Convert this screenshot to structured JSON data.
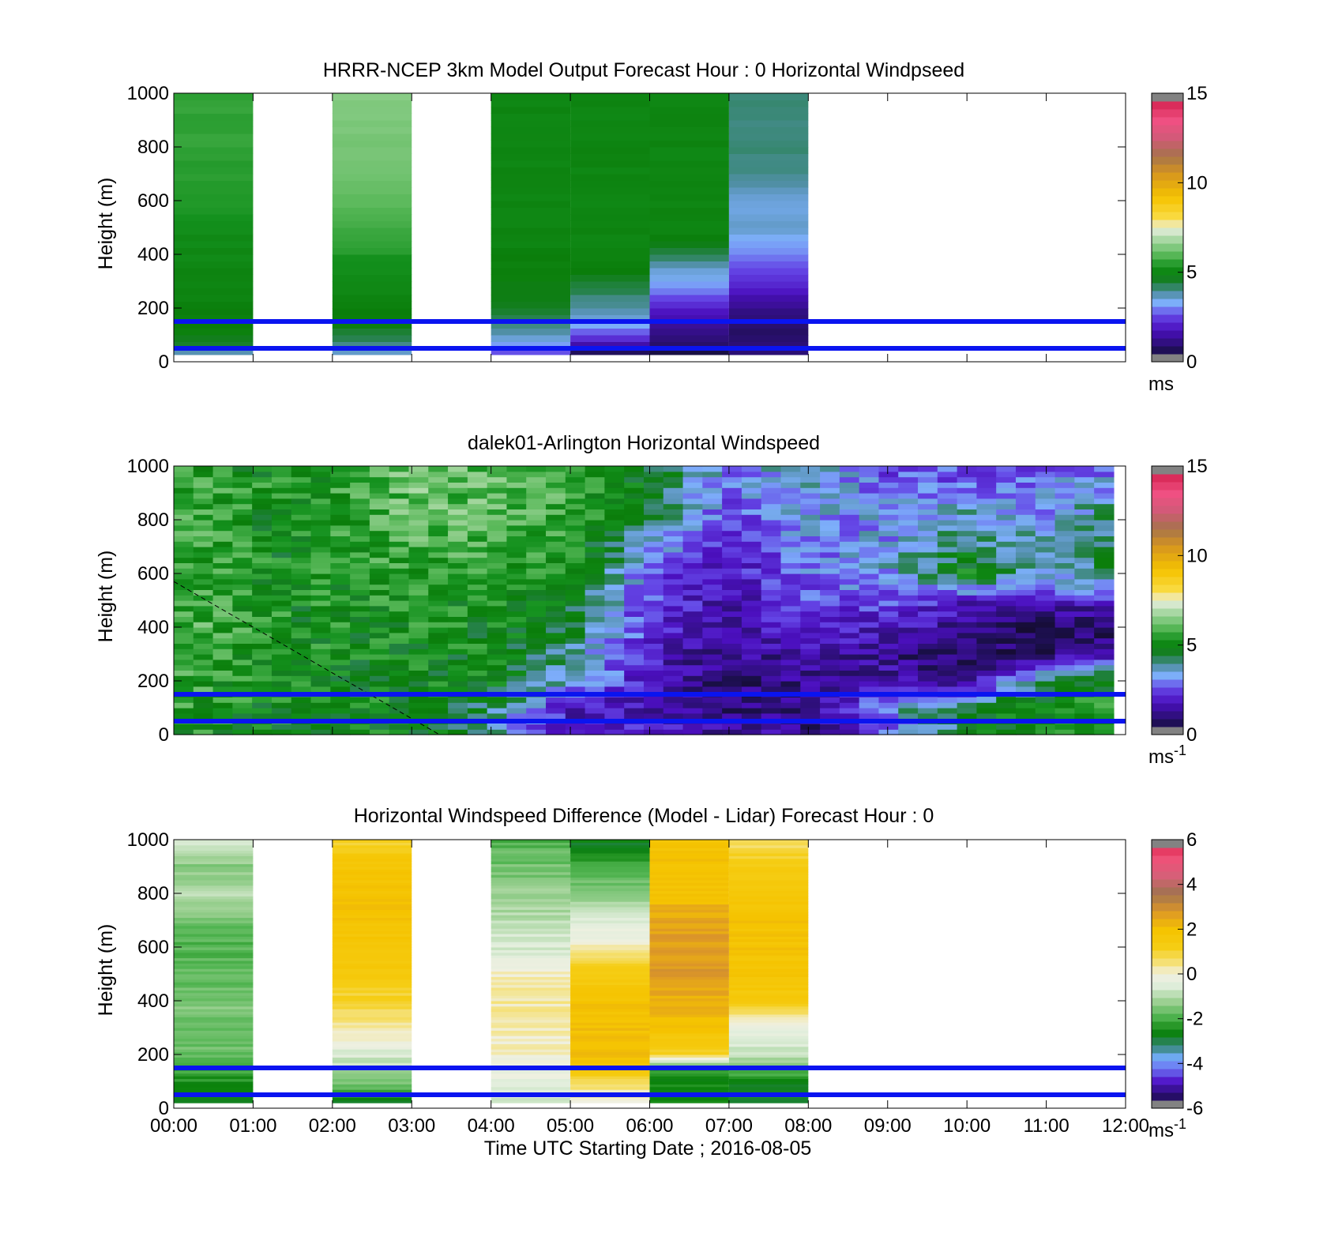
{
  "chart_data": [
    {
      "type": "heatmap",
      "title": "HRRR-NCEP 3km Model Output   Forecast Hour : 0 Horizontal Windpseed",
      "ylabel": "Height (m)",
      "xlabel": "",
      "ylim": [
        0,
        1000
      ],
      "yticks": [
        0,
        200,
        400,
        600,
        800,
        1000
      ],
      "xlim": [
        0,
        12
      ],
      "x_tick_labels": [
        "00:00",
        "01:00",
        "02:00",
        "03:00",
        "04:00",
        "05:00",
        "06:00",
        "07:00",
        "08:00",
        "09:00",
        "10:00",
        "11:00",
        "12:00"
      ],
      "show_x_tick_labels": false,
      "colorbar": {
        "ticks": [
          0,
          5,
          10,
          15
        ],
        "label": "ms",
        "label_sup": "",
        "range": [
          0,
          15
        ]
      },
      "reference_heights": [
        150,
        50
      ],
      "reference_color": "#0a14f0",
      "profile_heights": [
        30,
        60,
        100,
        150,
        200,
        250,
        300,
        350,
        400,
        450,
        500,
        600,
        700,
        800,
        900,
        1000
      ],
      "columns": [
        {
          "t0": 0,
          "t1": 1,
          "values": [
            3.6,
            4.5,
            4.8,
            4.9,
            4.9,
            5.0,
            5.0,
            5.0,
            5.1,
            5.1,
            5.2,
            5.4,
            5.5,
            5.6,
            5.6,
            5.6
          ]
        },
        {
          "t0": 2,
          "t1": 3,
          "values": [
            3.5,
            4.0,
            4.5,
            4.8,
            4.9,
            5.0,
            5.1,
            5.2,
            5.4,
            5.6,
            5.8,
            6.0,
            6.2,
            6.3,
            6.4,
            6.5
          ]
        },
        {
          "t0": 4,
          "t1": 5,
          "values": [
            2.5,
            3.2,
            3.8,
            4.2,
            4.6,
            4.7,
            4.8,
            4.9,
            4.9,
            5.0,
            5.0,
            5.0,
            5.0,
            5.0,
            5.0,
            5.0
          ]
        },
        {
          "t0": 5,
          "t1": 6,
          "values": [
            0.5,
            1.5,
            2.5,
            3.5,
            3.8,
            4.2,
            4.6,
            4.9,
            5.0,
            5.0,
            5.0,
            5.0,
            5.0,
            5.0,
            5.0,
            5.0
          ]
        },
        {
          "t0": 6,
          "t1": 7,
          "values": [
            0.4,
            0.8,
            1.2,
            1.5,
            2.0,
            2.8,
            3.3,
            3.6,
            4.3,
            4.8,
            5.0,
            5.0,
            5.0,
            5.0,
            5.0,
            5.0
          ]
        },
        {
          "t0": 7,
          "t1": 8,
          "values": [
            1.0,
            1.0,
            0.8,
            0.9,
            1.2,
            1.8,
            2.2,
            2.6,
            3.0,
            3.3,
            3.6,
            3.5,
            4.0,
            4.1,
            4.1,
            4.1
          ]
        }
      ]
    },
    {
      "type": "heatmap",
      "title": "dalek01-Arlington  Horizontal Windspeed",
      "ylabel": "Height (m)",
      "xlabel": "",
      "ylim": [
        0,
        1000
      ],
      "yticks": [
        0,
        200,
        400,
        600,
        800,
        1000
      ],
      "xlim": [
        0,
        12
      ],
      "x_tick_labels": [
        "00:00",
        "01:00",
        "02:00",
        "03:00",
        "04:00",
        "05:00",
        "06:00",
        "07:00",
        "08:00",
        "09:00",
        "10:00",
        "11:00",
        "12:00"
      ],
      "show_x_tick_labels": false,
      "colorbar": {
        "ticks": [
          0,
          5,
          10,
          15
        ],
        "label": "ms",
        "label_sup": "-1",
        "range": [
          0,
          15
        ]
      },
      "reference_heights": [
        150,
        50
      ],
      "reference_color": "#0a14f0",
      "dashed_line": {
        "t": [
          0,
          3.35
        ],
        "h": [
          570,
          0
        ]
      },
      "data_extent_hours": 11.85,
      "anchor_profiles": [
        {
          "t": 0.0,
          "h": [
            0,
            200,
            400,
            600,
            800,
            1000
          ],
          "v": [
            5.4,
            5.6,
            5.9,
            5.6,
            5.9,
            5.6
          ]
        },
        {
          "t": 1.5,
          "h": [
            0,
            200,
            400,
            600,
            800,
            1000
          ],
          "v": [
            5.0,
            5.1,
            5.2,
            5.1,
            5.0,
            5.1
          ]
        },
        {
          "t": 3.0,
          "h": [
            0,
            200,
            400,
            600,
            800,
            1000
          ],
          "v": [
            4.9,
            5.0,
            5.2,
            5.6,
            6.0,
            6.2
          ]
        },
        {
          "t": 4.0,
          "h": [
            0,
            100,
            200,
            400,
            600,
            800,
            1000
          ],
          "v": [
            3.8,
            4.3,
            4.9,
            5.0,
            5.5,
            6.0,
            6.0
          ]
        },
        {
          "t": 5.0,
          "h": [
            0,
            100,
            200,
            400,
            600,
            800,
            1000
          ],
          "v": [
            1.6,
            2.0,
            3.5,
            4.5,
            5.0,
            5.6,
            5.8
          ]
        },
        {
          "t": 6.0,
          "h": [
            0,
            100,
            200,
            400,
            600,
            800,
            1000
          ],
          "v": [
            2.2,
            1.6,
            1.8,
            2.2,
            2.8,
            4.2,
            4.8
          ]
        },
        {
          "t": 7.0,
          "h": [
            0,
            100,
            200,
            400,
            600,
            800,
            1000
          ],
          "v": [
            1.5,
            1.1,
            0.9,
            1.4,
            1.8,
            2.6,
            3.2
          ]
        },
        {
          "t": 8.0,
          "h": [
            0,
            100,
            200,
            400,
            600,
            800,
            1000
          ],
          "v": [
            1.2,
            1.0,
            1.2,
            2.2,
            2.9,
            3.2,
            3.7
          ]
        },
        {
          "t": 9.0,
          "h": [
            0,
            100,
            200,
            300,
            400,
            600,
            800,
            1000
          ],
          "v": [
            2.4,
            3.5,
            1.6,
            1.2,
            1.8,
            3.4,
            3.2,
            2.6
          ]
        },
        {
          "t": 10.0,
          "h": [
            0,
            100,
            200,
            300,
            400,
            500,
            600,
            800,
            1000
          ],
          "v": [
            4.6,
            4.6,
            1.2,
            0.8,
            1.3,
            2.0,
            5.0,
            3.8,
            2.4
          ]
        },
        {
          "t": 11.0,
          "h": [
            0,
            100,
            200,
            300,
            400,
            500,
            600,
            800,
            1000
          ],
          "v": [
            5.3,
            5.2,
            4.6,
            1.0,
            0.6,
            1.8,
            3.6,
            3.4,
            2.8
          ]
        },
        {
          "t": 11.85,
          "h": [
            0,
            100,
            200,
            300,
            400,
            500,
            600,
            800,
            1000
          ],
          "v": [
            5.4,
            5.4,
            4.9,
            1.6,
            0.6,
            2.0,
            4.6,
            4.3,
            2.8
          ]
        }
      ]
    },
    {
      "type": "heatmap",
      "title": "Horizontal Windspeed Difference (Model - Lidar) Forecast Hour : 0",
      "ylabel": "Height (m)",
      "xlabel": "Time UTC  Starting Date ; 2016-08-05",
      "ylim": [
        0,
        1000
      ],
      "yticks": [
        0,
        200,
        400,
        600,
        800,
        1000
      ],
      "xlim": [
        0,
        12
      ],
      "x_tick_labels": [
        "00:00",
        "01:00",
        "02:00",
        "03:00",
        "04:00",
        "05:00",
        "06:00",
        "07:00",
        "08:00",
        "09:00",
        "10:00",
        "11:00",
        "12:00"
      ],
      "show_x_tick_labels": true,
      "colorbar": {
        "ticks": [
          -6,
          -4,
          -2,
          0,
          2,
          4,
          6
        ],
        "label": "ms",
        "label_sup": "-1",
        "range": [
          -6,
          6
        ]
      },
      "reference_heights": [
        150,
        50
      ],
      "reference_color": "#0a14f0",
      "columns": [
        {
          "t0": 0,
          "t1": 1,
          "h": [
            30,
            100,
            200,
            300,
            400,
            500,
            600,
            700,
            800,
            900,
            1000
          ],
          "v": [
            -2.6,
            -2.4,
            -1.7,
            -1.6,
            -1.5,
            -1.8,
            -1.9,
            -1.6,
            -1.0,
            -1.4,
            -0.6
          ]
        },
        {
          "t0": 2,
          "t1": 3,
          "h": [
            30,
            100,
            200,
            300,
            400,
            500,
            600,
            700,
            800,
            900,
            1000
          ],
          "v": [
            -2.6,
            -1.4,
            -0.6,
            0.4,
            0.9,
            1.5,
            1.7,
            1.9,
            1.9,
            1.8,
            1.0
          ]
        },
        {
          "t0": 4,
          "t1": 5,
          "h": [
            30,
            100,
            200,
            300,
            400,
            500,
            600,
            700,
            800,
            900,
            1000
          ],
          "v": [
            -0.6,
            -0.4,
            0.1,
            0.2,
            0.3,
            0.1,
            -0.6,
            -0.9,
            -1.3,
            -1.6,
            -1.9
          ]
        },
        {
          "t0": 5,
          "t1": 6,
          "h": [
            30,
            100,
            150,
            200,
            300,
            400,
            500,
            600,
            700,
            800,
            900,
            1000
          ],
          "v": [
            0.2,
            0.5,
            1.8,
            2.0,
            2.0,
            1.9,
            1.3,
            0.2,
            -0.6,
            -1.3,
            -2.2,
            -2.7
          ]
        },
        {
          "t0": 6,
          "t1": 7,
          "h": [
            30,
            100,
            150,
            200,
            300,
            400,
            500,
            600,
            700,
            800,
            900,
            1000
          ],
          "v": [
            -2.6,
            -2.4,
            -2.4,
            1.0,
            2.0,
            2.3,
            2.8,
            2.7,
            2.5,
            2.0,
            1.9,
            1.9
          ]
        },
        {
          "t0": 7,
          "t1": 8,
          "h": [
            30,
            100,
            200,
            300,
            400,
            500,
            600,
            700,
            800,
            900,
            1000
          ],
          "v": [
            -2.6,
            -2.6,
            -0.8,
            -0.4,
            1.5,
            1.8,
            1.9,
            1.9,
            1.7,
            1.2,
            0.6
          ]
        }
      ]
    }
  ]
}
